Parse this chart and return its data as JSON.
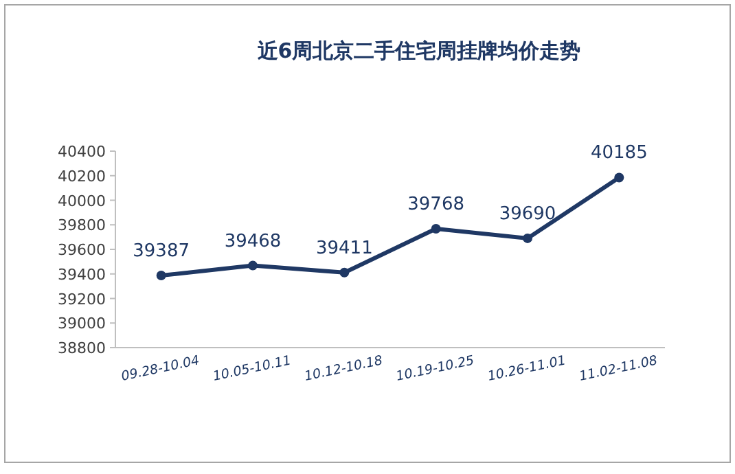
{
  "chart_data": {
    "type": "line",
    "title": "近6周北京二手住宅周挂牌均价走势",
    "categories": [
      "09.28-10.04",
      "10.05-10.11",
      "10.12-10.18",
      "10.19-10.25",
      "10.26-11.01",
      "11.02-11.08"
    ],
    "series": [
      {
        "color": "#1f3864",
        "values": [
          39387,
          39468,
          39411,
          39768,
          39690,
          40185
        ]
      }
    ],
    "ylim": [
      38800,
      40400
    ],
    "yticks": [
      38800,
      39000,
      39200,
      39400,
      39600,
      39800,
      40000,
      40200,
      40400
    ],
    "data_labels": true,
    "marker": "circle",
    "line_style": "solid",
    "grid": false
  }
}
